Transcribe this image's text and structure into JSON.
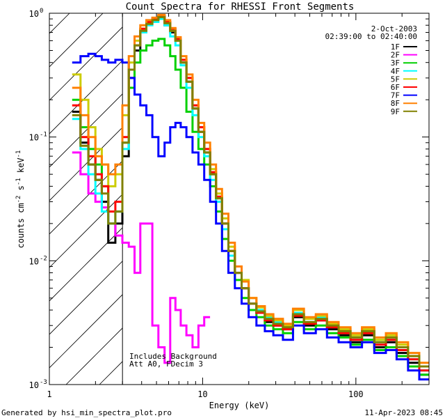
{
  "chart_data": {
    "type": "line",
    "title": "Count Spectra for RHESSI Front Segments",
    "xlabel": "Energy (keV)",
    "ylabel_parts": {
      "base": "counts cm",
      "exp1": "-2",
      "mid": " s",
      "exp2": "-1",
      "end": " keV",
      "exp3": "-1"
    },
    "x_scale": "log",
    "y_scale": "log",
    "xlim": [
      1,
      300
    ],
    "ylim": [
      0.001,
      1
    ],
    "x_tick_labels": [
      {
        "v": 1,
        "t": "1"
      },
      {
        "v": 10,
        "t": "10"
      },
      {
        "v": 100,
        "t": "100"
      }
    ],
    "y_tick_labels": [
      {
        "v": 1,
        "t": "10",
        "e": "0"
      },
      {
        "v": 0.1,
        "t": "10",
        "e": "-1"
      },
      {
        "v": 0.01,
        "t": "10",
        "e": "-2"
      },
      {
        "v": 0.001,
        "t": "10",
        "e": "-3"
      }
    ],
    "date": "2-Oct-2003",
    "time_range": "02:39:00 to 02:40:00",
    "annotation_lines": [
      "Includes Background",
      "Att A0, FDecim 3"
    ],
    "footer_left": "Generated by hsi_min_spectra_plot.pro",
    "footer_right": "11-Apr-2023 08:45",
    "shaded_region_x": [
      1,
      3
    ],
    "legend_position": "top-right",
    "series": [
      {
        "name": "1F",
        "color": "#000000",
        "x": [
          1.5,
          1.7,
          1.9,
          2.1,
          2.3,
          2.55,
          2.85,
          3.15,
          3.45,
          3.75,
          4.1,
          4.5,
          4.9,
          5.4,
          5.9,
          6.4,
          6.9,
          7.5,
          8.2,
          9.0,
          9.8,
          10.7,
          11.7,
          12.8,
          14.0,
          15.5,
          17,
          19,
          21,
          24,
          27,
          31,
          36,
          42,
          50,
          60,
          70,
          85,
          100,
          120,
          145,
          170,
          200,
          240,
          280
        ],
        "y": [
          0.16,
          0.09,
          0.06,
          0.045,
          0.03,
          0.014,
          0.02,
          0.07,
          0.3,
          0.5,
          0.7,
          0.85,
          0.9,
          0.95,
          0.8,
          0.7,
          0.6,
          0.4,
          0.28,
          0.17,
          0.11,
          0.075,
          0.05,
          0.032,
          0.02,
          0.012,
          0.008,
          0.006,
          0.0045,
          0.0038,
          0.0032,
          0.003,
          0.0028,
          0.0035,
          0.003,
          0.0033,
          0.0028,
          0.0025,
          0.0022,
          0.0025,
          0.002,
          0.0022,
          0.0018,
          0.0015,
          0.0012
        ]
      },
      {
        "name": "2F",
        "color": "#ff00ff",
        "x": [
          1.5,
          1.7,
          1.9,
          2.1,
          2.3,
          2.55,
          2.85,
          3.15,
          3.45,
          3.75,
          4.1,
          4.5,
          4.9,
          5.4,
          5.9,
          6.4,
          6.9,
          7.5,
          8.2,
          9.0,
          9.8,
          10.7
        ],
        "y": [
          0.075,
          0.05,
          0.035,
          0.03,
          0.027,
          0.02,
          0.016,
          0.014,
          0.013,
          0.008,
          0.02,
          0.02,
          0.003,
          0.002,
          0.0015,
          0.005,
          0.004,
          0.003,
          0.0025,
          0.002,
          0.003,
          0.0035
        ]
      },
      {
        "name": "3F",
        "color": "#00d000",
        "x": [
          1.5,
          1.7,
          1.9,
          2.1,
          2.3,
          2.55,
          2.85,
          3.15,
          3.45,
          3.75,
          4.1,
          4.5,
          4.9,
          5.4,
          5.9,
          6.4,
          6.9,
          7.5,
          8.2,
          9.0,
          9.8,
          10.7,
          11.7,
          12.8,
          14.0,
          15.5,
          17,
          19,
          21,
          24,
          27,
          31,
          36,
          42,
          50,
          60,
          70,
          85,
          100,
          120,
          145,
          170,
          200,
          240,
          280
        ],
        "y": [
          0.2,
          0.12,
          0.08,
          0.06,
          0.04,
          0.02,
          0.025,
          0.09,
          0.25,
          0.4,
          0.5,
          0.55,
          0.6,
          0.62,
          0.55,
          0.45,
          0.35,
          0.25,
          0.16,
          0.11,
          0.08,
          0.06,
          0.04,
          0.025,
          0.015,
          0.01,
          0.007,
          0.005,
          0.004,
          0.0035,
          0.003,
          0.0028,
          0.0026,
          0.0032,
          0.0028,
          0.003,
          0.0026,
          0.0024,
          0.0021,
          0.0023,
          0.0019,
          0.002,
          0.0017,
          0.0014,
          0.0012
        ]
      },
      {
        "name": "4F",
        "color": "#00ffff",
        "x": [
          1.5,
          1.7,
          1.9,
          2.1,
          2.3,
          2.55,
          2.85,
          3.15,
          3.45,
          3.75,
          4.1,
          4.5,
          4.9,
          5.4,
          5.9,
          6.4,
          6.9,
          7.5,
          8.2,
          9.0,
          9.8,
          10.7,
          11.7,
          12.8,
          14.0,
          15.5,
          17,
          19,
          21,
          24,
          27,
          31,
          36,
          42,
          50,
          60,
          70,
          85,
          100,
          120,
          145,
          170,
          200,
          240,
          280
        ],
        "y": [
          0.14,
          0.08,
          0.05,
          0.035,
          0.025,
          0.02,
          0.025,
          0.08,
          0.35,
          0.55,
          0.7,
          0.8,
          0.85,
          0.9,
          0.8,
          0.65,
          0.55,
          0.38,
          0.25,
          0.15,
          0.1,
          0.07,
          0.045,
          0.03,
          0.018,
          0.011,
          0.008,
          0.006,
          0.0045,
          0.004,
          0.0035,
          0.0032,
          0.003,
          0.0038,
          0.0032,
          0.0035,
          0.003,
          0.0027,
          0.0024,
          0.0027,
          0.0022,
          0.0024,
          0.002,
          0.0016,
          0.0013
        ]
      },
      {
        "name": "5F",
        "color": "#cccc00",
        "x": [
          1.5,
          1.7,
          1.9,
          2.1,
          2.3,
          2.55,
          2.85,
          3.15,
          3.45,
          3.75,
          4.1,
          4.5,
          4.9,
          5.4,
          5.9,
          6.4,
          6.9,
          7.5,
          8.2,
          9.0,
          9.8,
          10.7,
          11.7,
          12.8,
          14.0,
          15.5,
          17,
          19,
          21,
          24,
          27,
          31,
          36,
          42,
          50,
          60,
          70,
          85,
          100,
          120,
          145,
          170,
          200,
          240,
          280
        ],
        "y": [
          0.32,
          0.2,
          0.12,
          0.08,
          0.06,
          0.04,
          0.05,
          0.15,
          0.4,
          0.6,
          0.75,
          0.85,
          0.9,
          0.95,
          0.85,
          0.72,
          0.6,
          0.42,
          0.3,
          0.18,
          0.12,
          0.08,
          0.055,
          0.035,
          0.022,
          0.013,
          0.009,
          0.007,
          0.005,
          0.0042,
          0.0036,
          0.0033,
          0.003,
          0.004,
          0.0034,
          0.0036,
          0.0031,
          0.0028,
          0.0025,
          0.0028,
          0.0023,
          0.0025,
          0.0021,
          0.0017,
          0.0014
        ]
      },
      {
        "name": "6F",
        "color": "#ff0000",
        "x": [
          1.5,
          1.7,
          1.9,
          2.1,
          2.3,
          2.55,
          2.85,
          3.15,
          3.45,
          3.75,
          4.1,
          4.5,
          4.9,
          5.4,
          5.9,
          6.4,
          6.9,
          7.5,
          8.2,
          9.0,
          9.8,
          10.7,
          11.7,
          12.8,
          14.0,
          15.5,
          17,
          19,
          21,
          24,
          27,
          31,
          36,
          42,
          50,
          60,
          70,
          85,
          100,
          120,
          145,
          170,
          200,
          240,
          280
        ],
        "y": [
          0.18,
          0.1,
          0.07,
          0.05,
          0.04,
          0.025,
          0.03,
          0.1,
          0.35,
          0.55,
          0.75,
          0.85,
          0.9,
          0.95,
          0.85,
          0.75,
          0.62,
          0.42,
          0.3,
          0.18,
          0.12,
          0.08,
          0.052,
          0.033,
          0.02,
          0.012,
          0.008,
          0.006,
          0.0045,
          0.0038,
          0.0033,
          0.003,
          0.0028,
          0.0036,
          0.0031,
          0.0033,
          0.0029,
          0.0026,
          0.0023,
          0.0026,
          0.0021,
          0.0023,
          0.0019,
          0.0016,
          0.0013
        ]
      },
      {
        "name": "7F",
        "color": "#0000ff",
        "x": [
          1.5,
          1.7,
          1.9,
          2.1,
          2.3,
          2.55,
          2.85,
          3.15,
          3.45,
          3.75,
          4.1,
          4.5,
          4.9,
          5.4,
          5.9,
          6.4,
          6.9,
          7.5,
          8.2,
          9.0,
          9.8,
          10.7,
          11.7,
          12.8,
          14.0,
          15.5,
          17,
          19,
          21,
          24,
          27,
          31,
          36,
          42,
          50,
          60,
          70,
          85,
          100,
          120,
          145,
          170,
          200,
          240,
          280
        ],
        "y": [
          0.4,
          0.45,
          0.47,
          0.45,
          0.42,
          0.4,
          0.42,
          0.4,
          0.3,
          0.22,
          0.18,
          0.15,
          0.1,
          0.07,
          0.09,
          0.12,
          0.13,
          0.12,
          0.1,
          0.075,
          0.06,
          0.045,
          0.03,
          0.02,
          0.012,
          0.008,
          0.006,
          0.0045,
          0.0035,
          0.003,
          0.0027,
          0.0025,
          0.0023,
          0.003,
          0.0026,
          0.0028,
          0.0024,
          0.0022,
          0.002,
          0.0022,
          0.0018,
          0.0019,
          0.0016,
          0.0013,
          0.0011
        ]
      },
      {
        "name": "8F",
        "color": "#ff8000",
        "x": [
          1.5,
          1.7,
          1.9,
          2.1,
          2.3,
          2.55,
          2.85,
          3.15,
          3.45,
          3.75,
          4.1,
          4.5,
          4.9,
          5.4,
          5.9,
          6.4,
          6.9,
          7.5,
          8.2,
          9.0,
          9.8,
          10.7,
          11.7,
          12.8,
          14.0,
          15.5,
          17,
          19,
          21,
          24,
          27,
          31,
          36,
          42,
          50,
          60,
          70,
          85,
          100,
          120,
          145,
          170,
          200,
          240,
          280
        ],
        "y": [
          0.25,
          0.15,
          0.1,
          0.07,
          0.06,
          0.05,
          0.06,
          0.18,
          0.45,
          0.65,
          0.8,
          0.88,
          0.92,
          0.97,
          0.88,
          0.76,
          0.64,
          0.45,
          0.32,
          0.2,
          0.13,
          0.09,
          0.06,
          0.038,
          0.024,
          0.014,
          0.009,
          0.0068,
          0.005,
          0.0043,
          0.0037,
          0.0034,
          0.0031,
          0.0041,
          0.0035,
          0.0037,
          0.0032,
          0.0029,
          0.0026,
          0.0029,
          0.0024,
          0.0026,
          0.0022,
          0.0018,
          0.0015
        ]
      },
      {
        "name": "9F",
        "color": "#808000",
        "x": [
          1.5,
          1.7,
          1.9,
          2.1,
          2.3,
          2.55,
          2.85,
          3.15,
          3.45,
          3.75,
          4.1,
          4.5,
          4.9,
          5.4,
          5.9,
          6.4,
          6.9,
          7.5,
          8.2,
          9.0,
          9.8,
          10.7,
          11.7,
          12.8,
          14.0,
          15.5,
          17,
          19,
          21,
          24,
          27,
          31,
          36,
          42,
          50,
          60,
          70,
          85,
          100,
          120,
          145,
          170,
          200,
          240,
          280
        ],
        "y": [
          0.15,
          0.085,
          0.06,
          0.045,
          0.035,
          0.02,
          0.025,
          0.09,
          0.35,
          0.55,
          0.72,
          0.82,
          0.88,
          0.93,
          0.83,
          0.72,
          0.6,
          0.4,
          0.28,
          0.17,
          0.11,
          0.075,
          0.05,
          0.032,
          0.02,
          0.012,
          0.008,
          0.006,
          0.0045,
          0.0039,
          0.0034,
          0.0031,
          0.0029,
          0.0037,
          0.0032,
          0.0034,
          0.003,
          0.0027,
          0.0024,
          0.0027,
          0.0022,
          0.0024,
          0.002,
          0.0017,
          0.0014
        ]
      }
    ]
  }
}
